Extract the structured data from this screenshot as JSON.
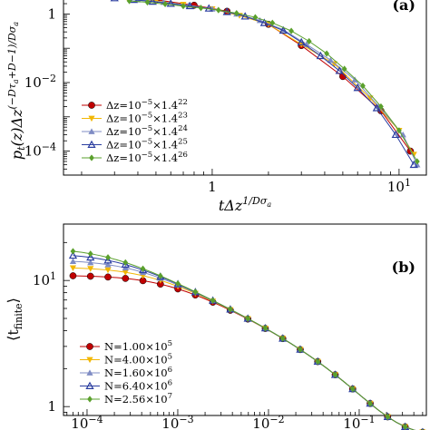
{
  "chart_data": [
    {
      "panel": "(a)",
      "type": "line",
      "x_scale": "log",
      "y_scale": "log",
      "xlim": [
        0.16,
        14
      ],
      "ylim": [
        2e-05,
        6
      ],
      "xlabel": "tΔz^{1/Dσ_a}",
      "ylabel": "p_t(z)Δz^{(−Dτ_a+D−1)/Dσ_a}",
      "x_tick_labels": [
        {
          "value": 1,
          "label": "1",
          "exp": ""
        },
        {
          "value": 10,
          "label": "10",
          "exp": "1"
        }
      ],
      "y_tick_labels": [
        {
          "value": 1,
          "label": "1",
          "exp": ""
        },
        {
          "value": 0.01,
          "label": "10",
          "exp": "−2"
        },
        {
          "value": 0.0001,
          "label": "10",
          "exp": "−4"
        }
      ],
      "legend_position": "lower-left",
      "series": [
        {
          "name": "Δz=10^{−5}×1.4^{22}",
          "label_base": "Δz=10",
          "label_exp1": "−5",
          "label_mid": "×1.4",
          "label_exp2": "22",
          "color": "#c00000",
          "marker": "circle",
          "x": [
            0.2,
            0.3,
            0.5,
            0.8,
            1.2,
            2,
            3,
            5,
            8,
            11.5
          ],
          "y": [
            4.5,
            3.5,
            2.6,
            1.8,
            1.2,
            0.5,
            0.12,
            0.015,
            0.0015,
            0.0001
          ]
        },
        {
          "name": "Δz=10^{−5}×1.4^{23}",
          "label_base": "Δz=10",
          "label_exp1": "−5",
          "label_mid": "×1.4",
          "label_exp2": "23",
          "color": "#f2b705",
          "marker": "triangle-down",
          "x": [
            0.25,
            0.35,
            0.5,
            0.7,
            1,
            1.4,
            2,
            3,
            4.5,
            7,
            10,
            12
          ],
          "y": [
            3.6,
            3.0,
            2.4,
            1.9,
            1.4,
            0.9,
            0.5,
            0.13,
            0.035,
            0.0035,
            0.0004,
            8e-05
          ]
        },
        {
          "name": "Δz=10^{−5}×1.4^{24}",
          "label_base": "Δz=10",
          "label_exp1": "−5",
          "label_mid": "×1.4",
          "label_exp2": "24",
          "color": "#7f8cc4",
          "marker": "triangle-up",
          "x": [
            0.22,
            0.3,
            0.4,
            0.55,
            0.75,
            1,
            1.35,
            1.8,
            2.4,
            3.2,
            4.3,
            5.8,
            7.8,
            10.5,
            12.5
          ],
          "y": [
            3.6,
            3.1,
            2.6,
            2.2,
            1.8,
            1.4,
            1.0,
            0.65,
            0.35,
            0.13,
            0.045,
            0.012,
            0.002,
            0.0003,
            4e-05
          ]
        },
        {
          "name": "Δz=10^{−5}×1.4^{25}",
          "label_base": "Δz=10",
          "label_exp1": "−5",
          "label_mid": "×1.4",
          "label_exp2": "25",
          "color": "#2b3ea0",
          "marker": "triangle-up-open",
          "x": [
            0.3,
            0.38,
            0.48,
            0.6,
            0.76,
            0.96,
            1.2,
            1.5,
            1.9,
            2.4,
            3,
            3.8,
            4.8,
            6,
            7.6,
            9.6,
            12
          ],
          "y": [
            2.9,
            2.6,
            2.3,
            2.0,
            1.7,
            1.45,
            1.15,
            0.85,
            0.55,
            0.33,
            0.15,
            0.06,
            0.022,
            0.007,
            0.0018,
            0.0003,
            4e-05
          ]
        },
        {
          "name": "Δz=10^{−5}×1.4^{26}",
          "label_base": "Δz=10",
          "label_exp1": "−5",
          "label_mid": "×1.4",
          "label_exp2": "26",
          "color": "#5aa02c",
          "marker": "diamond",
          "x": [
            0.36,
            0.45,
            0.56,
            0.7,
            0.87,
            1.08,
            1.35,
            1.7,
            2.1,
            2.65,
            3.3,
            4.1,
            5.1,
            6.4,
            8,
            10,
            12.5
          ],
          "y": [
            2.4,
            2.2,
            1.95,
            1.7,
            1.5,
            1.3,
            1.05,
            0.8,
            0.55,
            0.32,
            0.16,
            0.07,
            0.025,
            0.008,
            0.002,
            0.0004,
            5e-05
          ]
        }
      ]
    },
    {
      "panel": "(b)",
      "type": "line",
      "x_scale": "log",
      "y_scale": "log",
      "xlim": [
        5.5e-05,
        0.55
      ],
      "ylim": [
        0.85,
        28
      ],
      "xlabel": "",
      "ylabel": "⟨t_finite⟩",
      "x_tick_labels": [
        {
          "value": 0.0001,
          "label": "10",
          "exp": "−4"
        },
        {
          "value": 0.001,
          "label": "10",
          "exp": "−3"
        },
        {
          "value": 0.01,
          "label": "10",
          "exp": "−2"
        },
        {
          "value": 0.1,
          "label": "10",
          "exp": "−1"
        }
      ],
      "y_tick_labels": [
        {
          "value": 10,
          "label": "10",
          "exp": "1"
        },
        {
          "value": 1,
          "label": "1",
          "exp": ""
        }
      ],
      "legend_position": "lower-left",
      "series": [
        {
          "name": "N=1.00×10^{5}",
          "label_base": "N=1.00×10",
          "label_exp": "5",
          "color": "#c00000",
          "marker": "circle",
          "plateau": 11.0
        },
        {
          "name": "N=4.00×10^{5}",
          "label_base": "N=4.00×10",
          "label_exp": "5",
          "color": "#f2b705",
          "marker": "triangle-down",
          "plateau": 12.8
        },
        {
          "name": "N=1.60×10^{6}",
          "label_base": "N=1.60×10",
          "label_exp": "6",
          "color": "#7f8cc4",
          "marker": "triangle-up",
          "plateau": 14.6
        },
        {
          "name": "N=6.40×10^{6}",
          "label_base": "N=6.40×10",
          "label_exp": "6",
          "color": "#2b3ea0",
          "marker": "triangle-up-open",
          "plateau": 16.5
        },
        {
          "name": "N=2.56×10^{7}",
          "label_base": "N=2.56×10",
          "label_exp": "7",
          "color": "#5aa02c",
          "marker": "diamond",
          "plateau": 18.2
        }
      ]
    }
  ]
}
